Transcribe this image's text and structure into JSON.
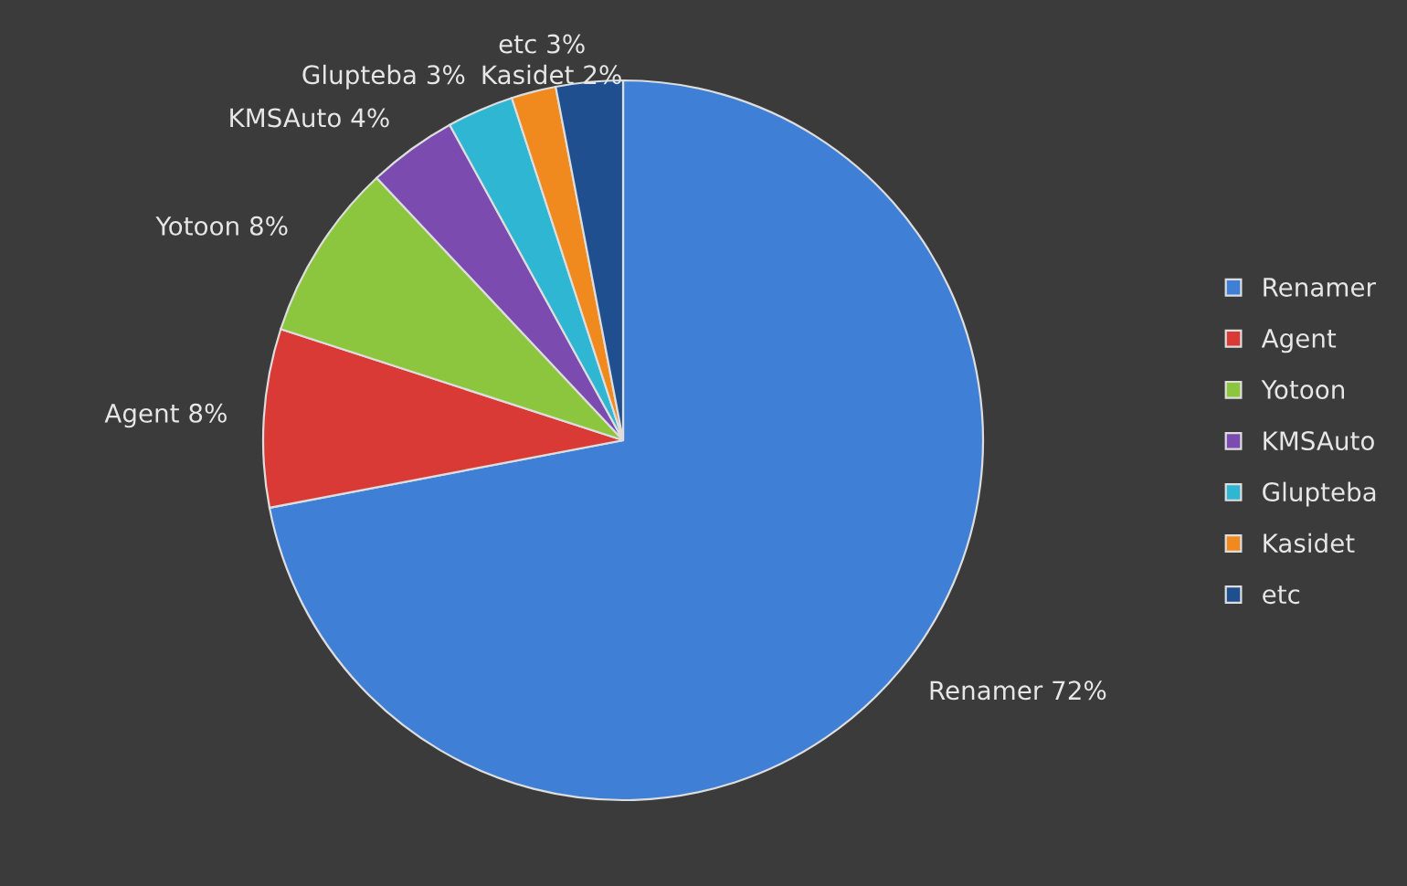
{
  "chart_data": {
    "type": "pie",
    "categories": [
      "Renamer",
      "Agent",
      "Yotoon",
      "KMSAuto",
      "Glupteba",
      "Kasidet",
      "etc"
    ],
    "values": [
      72,
      8,
      8,
      4,
      3,
      2,
      3
    ],
    "value_labels": [
      "72%",
      "8%",
      "8%",
      "4%",
      "3%",
      "2%",
      "3%"
    ],
    "colors": [
      "#3f80d6",
      "#d93a36",
      "#8cc63e",
      "#7b4bb0",
      "#2fb6d2",
      "#f0891e",
      "#1f4f8e"
    ],
    "legend": "right"
  }
}
